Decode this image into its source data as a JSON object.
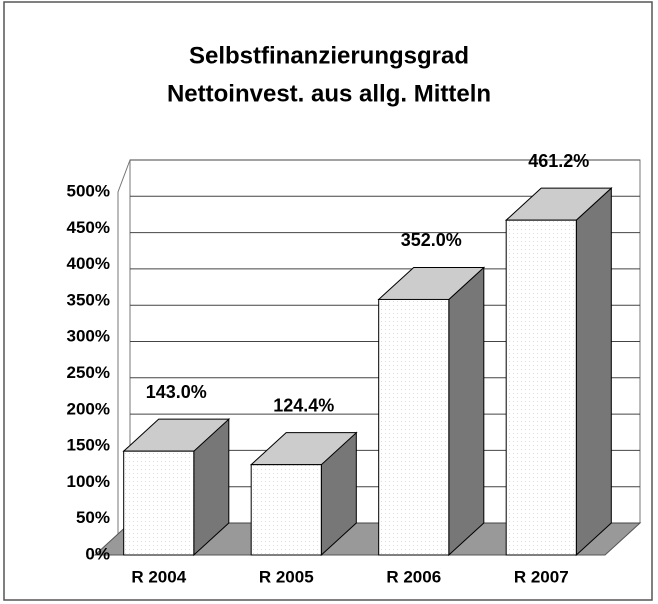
{
  "chart_data": {
    "type": "bar3d",
    "title": "Selbstfinanzierungsgrad",
    "subtitle": "Nettoinvest. aus allg. Mitteln",
    "categories": [
      "R 2004",
      "R 2005",
      "R 2006",
      "R 2007"
    ],
    "values": [
      143.0,
      124.4,
      352.0,
      461.2
    ],
    "value_labels": [
      "143.0%",
      "124.4%",
      "352.0%",
      "461.2%"
    ],
    "ylim": [
      0,
      500
    ],
    "yticks": [
      {
        "value": 0,
        "label": "0%"
      },
      {
        "value": 50,
        "label": "50%"
      },
      {
        "value": 100,
        "label": "100%"
      },
      {
        "value": 150,
        "label": "150%"
      },
      {
        "value": 200,
        "label": "200%"
      },
      {
        "value": 250,
        "label": "250%"
      },
      {
        "value": 300,
        "label": "300%"
      },
      {
        "value": 350,
        "label": "350%"
      },
      {
        "value": 400,
        "label": "400%"
      },
      {
        "value": 450,
        "label": "450%"
      },
      {
        "value": 500,
        "label": "500%"
      }
    ],
    "grid": true,
    "color": "#ffffff"
  }
}
